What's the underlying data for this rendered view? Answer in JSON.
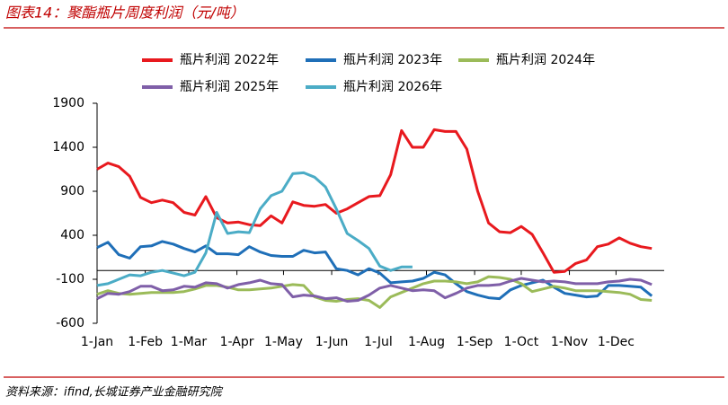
{
  "chart_data": {
    "type": "line",
    "title": "图表14：聚酯瓶片周度利润（元/吨）",
    "source": "资料来源：ifind,长城证券产业金融研究院",
    "x": [
      0,
      7,
      14,
      21,
      28,
      35,
      42,
      49,
      56,
      63,
      70,
      77,
      84,
      91,
      98,
      105,
      112,
      119,
      126,
      133,
      140,
      147,
      154,
      161,
      168,
      175,
      182,
      189,
      196,
      203,
      210,
      217,
      224,
      231,
      238,
      245,
      252,
      259,
      266,
      273,
      280,
      287,
      294,
      301,
      308,
      315,
      322,
      329,
      336,
      343,
      350,
      357
    ],
    "xlim": [
      0,
      365
    ],
    "xticks": [
      {
        "value": 0,
        "label": "1-Jan"
      },
      {
        "value": 31,
        "label": "1-Feb"
      },
      {
        "value": 59,
        "label": "1-Mar"
      },
      {
        "value": 90,
        "label": "1-Apr"
      },
      {
        "value": 120,
        "label": "1-May"
      },
      {
        "value": 151,
        "label": "1-Jun"
      },
      {
        "value": 181,
        "label": "1-Jul"
      },
      {
        "value": 212,
        "label": "1-Aug"
      },
      {
        "value": 243,
        "label": "1-Sep"
      },
      {
        "value": 273,
        "label": "1-Oct"
      },
      {
        "value": 304,
        "label": "1-Nov"
      },
      {
        "value": 334,
        "label": "1-Dec"
      }
    ],
    "ylim": [
      -600,
      1900
    ],
    "yticks": [
      -600,
      -100,
      400,
      900,
      1400,
      1900
    ],
    "grid": false,
    "legend": "top",
    "series": [
      {
        "name": "瓶片利润 2022年",
        "color": "#e8191e",
        "values": [
          1150,
          1220,
          1180,
          1070,
          830,
          770,
          800,
          770,
          660,
          630,
          840,
          600,
          540,
          550,
          520,
          510,
          620,
          540,
          780,
          740,
          730,
          750,
          650,
          700,
          770,
          840,
          850,
          1090,
          1590,
          1400,
          1400,
          1600,
          1580,
          1580,
          1380,
          900,
          540,
          440,
          430,
          500,
          410,
          200,
          -20,
          -10,
          80,
          120,
          270,
          300,
          370,
          310,
          270,
          250
        ]
      },
      {
        "name": "瓶片利润 2023年",
        "color": "#1f6fb8",
        "values": [
          260,
          320,
          180,
          140,
          270,
          280,
          330,
          300,
          250,
          210,
          280,
          190,
          190,
          180,
          270,
          210,
          170,
          160,
          160,
          230,
          200,
          210,
          20,
          0,
          -50,
          20,
          -30,
          -140,
          -130,
          -120,
          -90,
          -20,
          -50,
          -150,
          -240,
          -280,
          -310,
          -320,
          -220,
          -170,
          -140,
          -110,
          -190,
          -260,
          -280,
          -300,
          -290,
          -170,
          -170,
          -180,
          -190,
          -290
        ]
      },
      {
        "name": "瓶片利润 2024年",
        "color": "#9bbb59",
        "values": [
          -270,
          -230,
          -260,
          -270,
          -260,
          -250,
          -250,
          -250,
          -240,
          -210,
          -170,
          -170,
          -190,
          -220,
          -220,
          -210,
          -200,
          -180,
          -160,
          -170,
          -300,
          -340,
          -350,
          -330,
          -320,
          -340,
          -420,
          -300,
          -250,
          -200,
          -150,
          -120,
          -120,
          -130,
          -150,
          -130,
          -70,
          -80,
          -100,
          -150,
          -240,
          -210,
          -180,
          -200,
          -230,
          -230,
          -230,
          -240,
          -250,
          -270,
          -330,
          -340
        ]
      },
      {
        "name": "瓶片利润 2025年",
        "color": "#7f5fa8",
        "values": [
          -320,
          -260,
          -270,
          -240,
          -180,
          -180,
          -230,
          -220,
          -180,
          -190,
          -140,
          -150,
          -200,
          -160,
          -140,
          -110,
          -150,
          -160,
          -300,
          -280,
          -290,
          -320,
          -310,
          -350,
          -340,
          -280,
          -200,
          -170,
          -200,
          -230,
          -220,
          -230,
          -310,
          -260,
          -200,
          -170,
          -170,
          -160,
          -120,
          -90,
          -110,
          -130,
          -120,
          -130,
          -150,
          -150,
          -150,
          -130,
          -120,
          -100,
          -110,
          -160
        ]
      },
      {
        "name": "瓶片利润 2026年",
        "color": "#4bacc6",
        "values": [
          -170,
          -150,
          -100,
          -50,
          -60,
          -20,
          0,
          -30,
          -60,
          -20,
          200,
          660,
          420,
          440,
          430,
          700,
          850,
          900,
          1100,
          1110,
          1060,
          950,
          700,
          420,
          340,
          250,
          50,
          0,
          40,
          40,
          null,
          null,
          null,
          null,
          null,
          null,
          null,
          null,
          null,
          null,
          null,
          null,
          null,
          null,
          null,
          null,
          null,
          null,
          null,
          null,
          null,
          null
        ]
      }
    ]
  }
}
